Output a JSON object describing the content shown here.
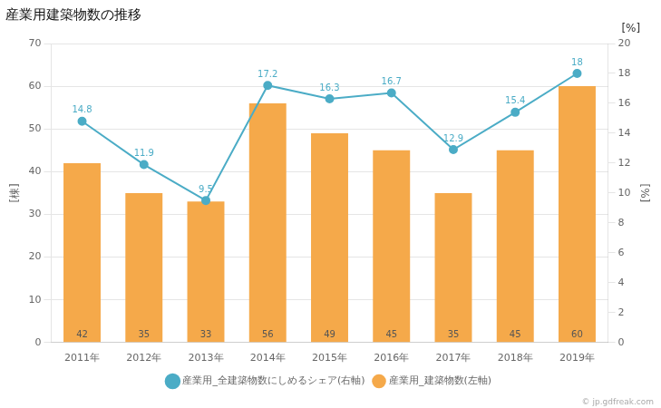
{
  "chart_data": {
    "type": "bar",
    "title": "産業用建築物数の推移",
    "categories": [
      "2011年",
      "2012年",
      "2013年",
      "2014年",
      "2015年",
      "2016年",
      "2017年",
      "2018年",
      "2019年"
    ],
    "series": [
      {
        "name": "産業用_建築物数(左軸)",
        "type": "bar",
        "color": "#F5A94A",
        "values": [
          42,
          35,
          33,
          56,
          49,
          45,
          35,
          45,
          60
        ],
        "data_labels": true
      },
      {
        "name": "産業用_全建築物数にしめるシェア(右軸)",
        "type": "line",
        "color": "#4BACC6",
        "marker": "circle",
        "axis": "y2",
        "values": [
          14.8,
          11.9,
          9.5,
          17.2,
          16.3,
          16.7,
          12.9,
          15.4,
          18
        ],
        "data_labels": true
      }
    ],
    "ylabel": "[棟]",
    "y2label": "[%]",
    "ylim": [
      0,
      70
    ],
    "yticks": [
      0,
      10,
      20,
      30,
      40,
      50,
      60,
      70
    ],
    "y2lim": [
      0,
      20
    ],
    "y2ticks": [
      0,
      2,
      4,
      6,
      8,
      10,
      12,
      14,
      16,
      18,
      20
    ],
    "grid": true,
    "legend": "bottom",
    "annotations": [
      "[%]",
      "© jp.gdfreak.com"
    ]
  }
}
